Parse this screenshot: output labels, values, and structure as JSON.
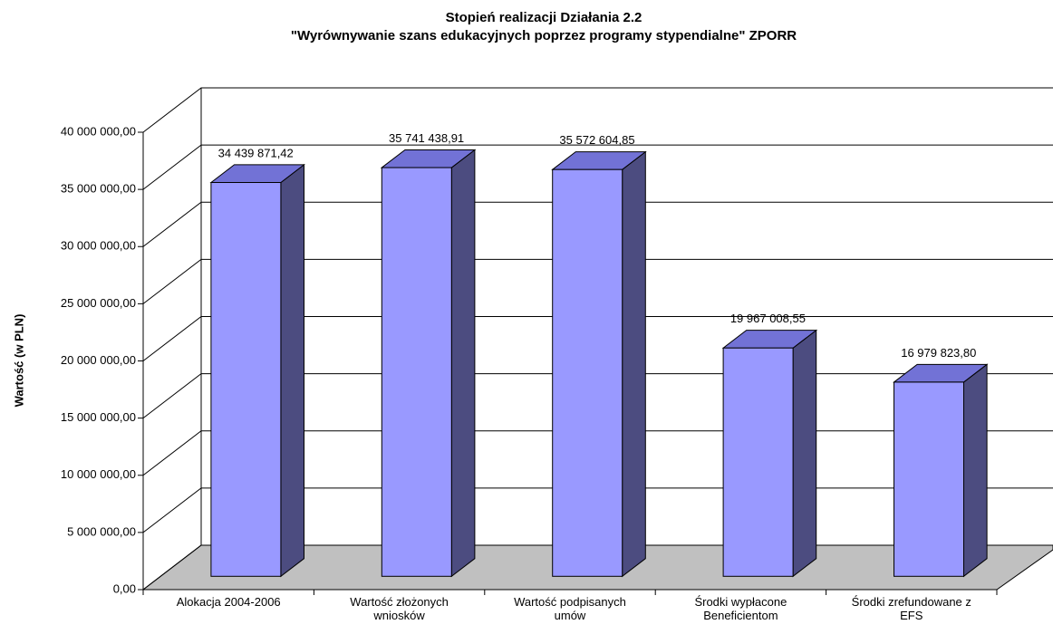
{
  "chart_data": {
    "type": "bar3d",
    "title": "Stopień realizacji Działania 2.2",
    "subtitle": "\"Wyrównywanie szans edukacyjnych poprzez programy stypendialne\" ZPORR",
    "y_label": "Wartość (w PLN)",
    "categories": [
      "Alokacja 2004-2006",
      "Wartość złożonych wniosków",
      "Wartość podpisanych umów",
      "Środki wypłacone Beneficientom",
      "Środki zrefundowane z EFS"
    ],
    "values": [
      34439871.42,
      35741438.91,
      35572604.85,
      19967008.55,
      16979823.8
    ],
    "value_labels": [
      "34 439 871,42",
      "35 741 438,91",
      "35 572 604,85",
      "19 967 008,55",
      "16 979 823,80"
    ],
    "color": "#9999ff",
    "ylim": [
      0,
      40000000
    ],
    "yticks": [
      {
        "value": 0,
        "label": "0,00"
      },
      {
        "value": 5000000,
        "label": "5 000 000,00"
      },
      {
        "value": 10000000,
        "label": "10 000 000,00"
      },
      {
        "value": 15000000,
        "label": "15 000 000,00"
      },
      {
        "value": 20000000,
        "label": "20 000 000,00"
      },
      {
        "value": 25000000,
        "label": "25 000 000,00"
      },
      {
        "value": 30000000,
        "label": "30 000 000,00"
      },
      {
        "value": 35000000,
        "label": "35 000 000,00"
      },
      {
        "value": 40000000,
        "label": "40 000 000,00"
      }
    ],
    "grid": true
  }
}
